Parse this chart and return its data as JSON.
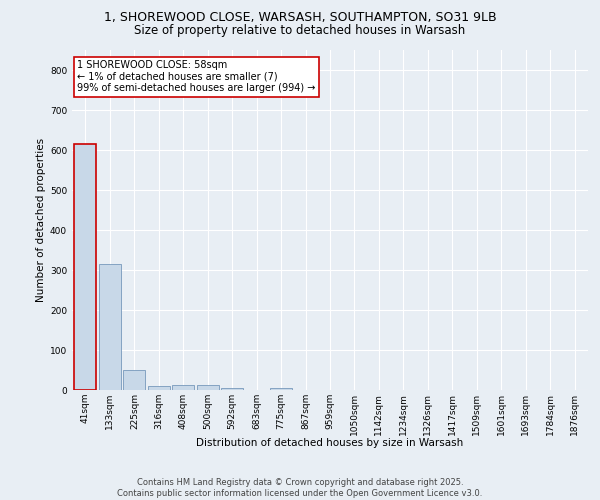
{
  "title_line1": "1, SHOREWOOD CLOSE, WARSASH, SOUTHAMPTON, SO31 9LB",
  "title_line2": "Size of property relative to detached houses in Warsash",
  "xlabel": "Distribution of detached houses by size in Warsash",
  "ylabel": "Number of detached properties",
  "categories": [
    "41sqm",
    "133sqm",
    "225sqm",
    "316sqm",
    "408sqm",
    "500sqm",
    "592sqm",
    "683sqm",
    "775sqm",
    "867sqm",
    "959sqm",
    "1050sqm",
    "1142sqm",
    "1234sqm",
    "1326sqm",
    "1417sqm",
    "1509sqm",
    "1601sqm",
    "1693sqm",
    "1784sqm",
    "1876sqm"
  ],
  "values": [
    615,
    315,
    50,
    10,
    12,
    12,
    5,
    0,
    5,
    0,
    0,
    0,
    0,
    0,
    0,
    0,
    0,
    0,
    0,
    0,
    0
  ],
  "bar_color": "#c8d8e8",
  "bar_edge_color": "#7799bb",
  "highlight_bar_index": 0,
  "highlight_edge_color": "#cc0000",
  "annotation_text": "1 SHOREWOOD CLOSE: 58sqm\n← 1% of detached houses are smaller (7)\n99% of semi-detached houses are larger (994) →",
  "annotation_box_color": "white",
  "annotation_edge_color": "#cc0000",
  "ylim": [
    0,
    850
  ],
  "yticks": [
    0,
    100,
    200,
    300,
    400,
    500,
    600,
    700,
    800
  ],
  "background_color": "#e8eef4",
  "grid_color": "white",
  "footer_text": "Contains HM Land Registry data © Crown copyright and database right 2025.\nContains public sector information licensed under the Open Government Licence v3.0.",
  "title_fontsize": 9,
  "subtitle_fontsize": 8.5,
  "axis_label_fontsize": 7.5,
  "tick_fontsize": 6.5,
  "annotation_fontsize": 7,
  "footer_fontsize": 6
}
